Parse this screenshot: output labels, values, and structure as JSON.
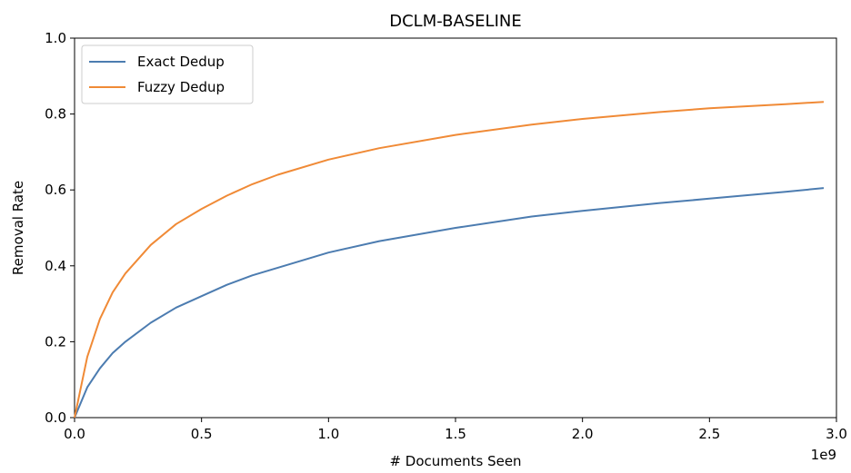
{
  "chart_data": {
    "type": "line",
    "title": "DCLM-BASELINE",
    "xlabel": "# Documents Seen",
    "ylabel": "Removal Rate",
    "x_scale_label": "1e9",
    "xlim": [
      0,
      3.0
    ],
    "ylim": [
      0,
      1.0
    ],
    "x_ticks": [
      0.0,
      0.5,
      1.0,
      1.5,
      2.0,
      2.5,
      3.0
    ],
    "x_tick_labels": [
      "0.0",
      "0.5",
      "1.0",
      "1.5",
      "2.0",
      "2.5",
      "3.0"
    ],
    "y_ticks": [
      0.0,
      0.2,
      0.4,
      0.6,
      0.8,
      1.0
    ],
    "y_tick_labels": [
      "0.0",
      "0.2",
      "0.4",
      "0.6",
      "0.8",
      "1.0"
    ],
    "grid": false,
    "legend_position": "top-left",
    "series": [
      {
        "name": "Exact Dedup",
        "color": "#4c7cb0",
        "x": [
          0,
          0.05,
          0.1,
          0.15,
          0.2,
          0.3,
          0.4,
          0.5,
          0.6,
          0.7,
          0.8,
          1.0,
          1.2,
          1.5,
          1.8,
          2.0,
          2.3,
          2.5,
          2.8,
          2.95
        ],
        "y": [
          0,
          0.08,
          0.13,
          0.17,
          0.2,
          0.25,
          0.29,
          0.32,
          0.35,
          0.375,
          0.395,
          0.435,
          0.465,
          0.5,
          0.53,
          0.545,
          0.565,
          0.577,
          0.595,
          0.605
        ]
      },
      {
        "name": "Fuzzy Dedup",
        "color": "#f08a36",
        "x": [
          0,
          0.05,
          0.1,
          0.15,
          0.2,
          0.3,
          0.4,
          0.5,
          0.6,
          0.7,
          0.8,
          1.0,
          1.2,
          1.5,
          1.8,
          2.0,
          2.3,
          2.5,
          2.8,
          2.95
        ],
        "y": [
          0,
          0.16,
          0.26,
          0.33,
          0.38,
          0.455,
          0.51,
          0.55,
          0.585,
          0.615,
          0.64,
          0.68,
          0.71,
          0.745,
          0.772,
          0.787,
          0.805,
          0.815,
          0.826,
          0.832
        ]
      }
    ]
  }
}
